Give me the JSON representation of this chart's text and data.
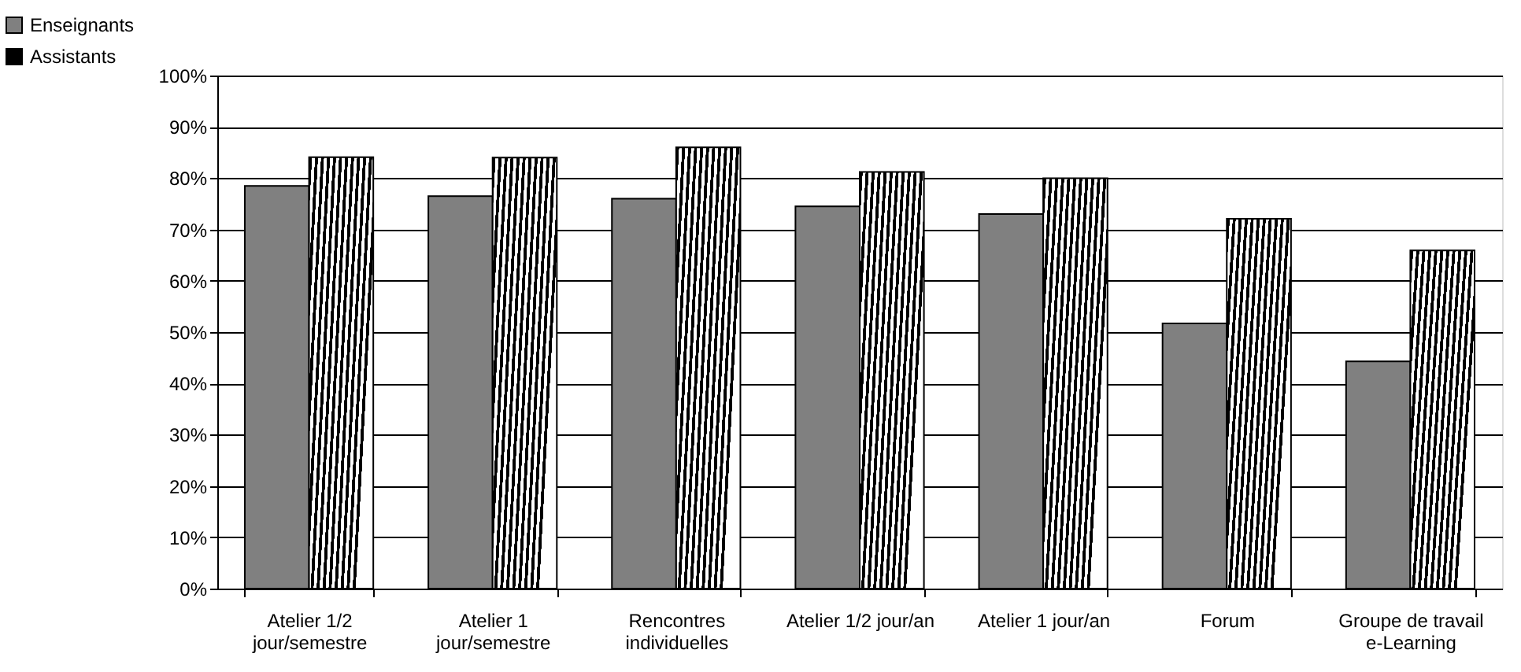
{
  "chart_data": {
    "type": "bar",
    "categories": [
      "Atelier 1/2 jour/semestre",
      "Atelier 1 jour/semestre",
      "Rencontres individuelles",
      "Atelier 1/2  jour/an",
      "Atelier 1 jour/an",
      "Forum",
      "Groupe de travail e-Learning"
    ],
    "series": [
      {
        "name": "Enseignants",
        "color": "#808080",
        "values": [
          78.5,
          76.5,
          76,
          74.5,
          73,
          51.7,
          44.3
        ]
      },
      {
        "name": "Assistants",
        "color": "#000000",
        "values": [
          84.1,
          84,
          86,
          81.2,
          80,
          72.1,
          65.9
        ]
      }
    ],
    "ylim": [
      0,
      100
    ],
    "yticks": [
      {
        "value": 0,
        "label": "0%"
      },
      {
        "value": 10,
        "label": "10%"
      },
      {
        "value": 20,
        "label": "20%"
      },
      {
        "value": 30,
        "label": "30%"
      },
      {
        "value": 40,
        "label": "40%"
      },
      {
        "value": 50,
        "label": "50%"
      },
      {
        "value": 60,
        "label": "60%"
      },
      {
        "value": 70,
        "label": "70%"
      },
      {
        "value": 80,
        "label": "80%"
      },
      {
        "value": 90,
        "label": "90%"
      },
      {
        "value": 100,
        "label": "100%"
      }
    ],
    "grid": "y",
    "legend": "top left"
  }
}
